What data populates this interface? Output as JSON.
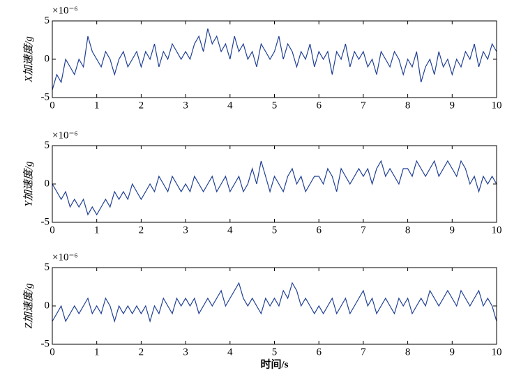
{
  "chart_data": [
    {
      "type": "line",
      "ylabel": "X加速度/g",
      "multiplier": "×10⁻⁶",
      "x": [
        0,
        0.1,
        0.2,
        0.3,
        0.4,
        0.5,
        0.6,
        0.7,
        0.8,
        0.9,
        1,
        1.1,
        1.2,
        1.3,
        1.4,
        1.5,
        1.6,
        1.7,
        1.8,
        1.9,
        2,
        2.1,
        2.2,
        2.3,
        2.4,
        2.5,
        2.6,
        2.7,
        2.8,
        2.9,
        3,
        3.1,
        3.2,
        3.3,
        3.4,
        3.5,
        3.6,
        3.7,
        3.8,
        3.9,
        4,
        4.1,
        4.2,
        4.3,
        4.4,
        4.5,
        4.6,
        4.7,
        4.8,
        4.9,
        5,
        5.1,
        5.2,
        5.3,
        5.4,
        5.5,
        5.6,
        5.7,
        5.8,
        5.9,
        6,
        6.1,
        6.2,
        6.3,
        6.4,
        6.5,
        6.6,
        6.7,
        6.8,
        6.9,
        7,
        7.1,
        7.2,
        7.3,
        7.4,
        7.5,
        7.6,
        7.7,
        7.8,
        7.9,
        8,
        8.1,
        8.2,
        8.3,
        8.4,
        8.5,
        8.6,
        8.7,
        8.8,
        8.9,
        9,
        9.1,
        9.2,
        9.3,
        9.4,
        9.5,
        9.6,
        9.7,
        9.8,
        9.9,
        10
      ],
      "series": [
        {
          "color": "#1f3f94",
          "values": [
            -4,
            -2,
            -3,
            0,
            -1,
            -2,
            0,
            -1,
            3,
            1,
            0,
            -1,
            1,
            0,
            -2,
            0,
            1,
            -1,
            0,
            1,
            -1,
            1,
            0,
            2,
            -1,
            1,
            0,
            2,
            1,
            0,
            1,
            0,
            2,
            3,
            1,
            4,
            2,
            3,
            1,
            2,
            0,
            3,
            1,
            2,
            0,
            1,
            -1,
            2,
            1,
            0,
            1,
            3,
            0,
            2,
            1,
            -1,
            1,
            0,
            2,
            -1,
            1,
            0,
            1,
            -2,
            1,
            0,
            2,
            -1,
            1,
            0,
            1,
            -1,
            0,
            -2,
            1,
            0,
            -1,
            1,
            0,
            -2,
            0,
            -1,
            1,
            -3,
            -1,
            0,
            -2,
            1,
            -1,
            0,
            -2,
            0,
            -1,
            1,
            0,
            2,
            -1,
            1,
            0,
            2,
            1
          ]
        }
      ],
      "xlim": [
        0,
        10
      ],
      "ylim": [
        -5,
        5
      ],
      "xticks": [
        0,
        1,
        2,
        3,
        4,
        5,
        6,
        7,
        8,
        9,
        10
      ],
      "yticks": [
        -5,
        0,
        5
      ]
    },
    {
      "type": "line",
      "ylabel": "Y加速度/g",
      "multiplier": "×10⁻⁶",
      "x": [
        0,
        0.1,
        0.2,
        0.3,
        0.4,
        0.5,
        0.6,
        0.7,
        0.8,
        0.9,
        1,
        1.1,
        1.2,
        1.3,
        1.4,
        1.5,
        1.6,
        1.7,
        1.8,
        1.9,
        2,
        2.1,
        2.2,
        2.3,
        2.4,
        2.5,
        2.6,
        2.7,
        2.8,
        2.9,
        3,
        3.1,
        3.2,
        3.3,
        3.4,
        3.5,
        3.6,
        3.7,
        3.8,
        3.9,
        4,
        4.1,
        4.2,
        4.3,
        4.4,
        4.5,
        4.6,
        4.7,
        4.8,
        4.9,
        5,
        5.1,
        5.2,
        5.3,
        5.4,
        5.5,
        5.6,
        5.7,
        5.8,
        5.9,
        6,
        6.1,
        6.2,
        6.3,
        6.4,
        6.5,
        6.6,
        6.7,
        6.8,
        6.9,
        7,
        7.1,
        7.2,
        7.3,
        7.4,
        7.5,
        7.6,
        7.7,
        7.8,
        7.9,
        8,
        8.1,
        8.2,
        8.3,
        8.4,
        8.5,
        8.6,
        8.7,
        8.8,
        8.9,
        9,
        9.1,
        9.2,
        9.3,
        9.4,
        9.5,
        9.6,
        9.7,
        9.8,
        9.9,
        10
      ],
      "series": [
        {
          "color": "#1f3f94",
          "values": [
            0,
            -1,
            -2,
            -1,
            -3,
            -2,
            -3,
            -2,
            -4,
            -3,
            -4,
            -3,
            -2,
            -3,
            -1,
            -2,
            -1,
            -2,
            0,
            -1,
            -2,
            -1,
            0,
            -1,
            1,
            0,
            -1,
            1,
            0,
            -1,
            0,
            -1,
            1,
            0,
            -1,
            0,
            1,
            -1,
            0,
            1,
            -1,
            0,
            1,
            -1,
            0,
            2,
            0,
            3,
            1,
            -1,
            1,
            0,
            -1,
            1,
            2,
            0,
            1,
            -1,
            0,
            1,
            1,
            0,
            2,
            1,
            -1,
            2,
            1,
            0,
            1,
            2,
            1,
            2,
            0,
            2,
            3,
            1,
            2,
            1,
            0,
            2,
            2,
            1,
            3,
            2,
            1,
            2,
            3,
            1,
            2,
            3,
            2,
            1,
            3,
            2,
            0,
            1,
            -1,
            1,
            0,
            1,
            0
          ]
        }
      ],
      "xlim": [
        0,
        10
      ],
      "ylim": [
        -5,
        5
      ],
      "xticks": [
        0,
        1,
        2,
        3,
        4,
        5,
        6,
        7,
        8,
        9,
        10
      ],
      "yticks": [
        -5,
        0,
        5
      ]
    },
    {
      "type": "line",
      "ylabel": "Z加速度/g",
      "multiplier": "×10⁻⁶",
      "xlabel": "时间/s",
      "x": [
        0,
        0.1,
        0.2,
        0.3,
        0.4,
        0.5,
        0.6,
        0.7,
        0.8,
        0.9,
        1,
        1.1,
        1.2,
        1.3,
        1.4,
        1.5,
        1.6,
        1.7,
        1.8,
        1.9,
        2,
        2.1,
        2.2,
        2.3,
        2.4,
        2.5,
        2.6,
        2.7,
        2.8,
        2.9,
        3,
        3.1,
        3.2,
        3.3,
        3.4,
        3.5,
        3.6,
        3.7,
        3.8,
        3.9,
        4,
        4.1,
        4.2,
        4.3,
        4.4,
        4.5,
        4.6,
        4.7,
        4.8,
        4.9,
        5,
        5.1,
        5.2,
        5.3,
        5.4,
        5.5,
        5.6,
        5.7,
        5.8,
        5.9,
        6,
        6.1,
        6.2,
        6.3,
        6.4,
        6.5,
        6.6,
        6.7,
        6.8,
        6.9,
        7,
        7.1,
        7.2,
        7.3,
        7.4,
        7.5,
        7.6,
        7.7,
        7.8,
        7.9,
        8,
        8.1,
        8.2,
        8.3,
        8.4,
        8.5,
        8.6,
        8.7,
        8.8,
        8.9,
        9,
        9.1,
        9.2,
        9.3,
        9.4,
        9.5,
        9.6,
        9.7,
        9.8,
        9.9,
        10
      ],
      "series": [
        {
          "color": "#1f3f94",
          "values": [
            -2,
            -1,
            0,
            -2,
            -1,
            0,
            -1,
            0,
            1,
            -1,
            0,
            -1,
            1,
            0,
            -2,
            0,
            -1,
            0,
            -1,
            0,
            -1,
            0,
            -2,
            0,
            -1,
            1,
            0,
            -1,
            1,
            0,
            1,
            0,
            1,
            -1,
            0,
            1,
            0,
            1,
            2,
            0,
            1,
            2,
            3,
            1,
            0,
            1,
            0,
            -1,
            1,
            0,
            1,
            0,
            2,
            1,
            3,
            2,
            0,
            1,
            0,
            -1,
            0,
            -1,
            0,
            1,
            -1,
            0,
            1,
            -1,
            0,
            1,
            2,
            0,
            1,
            -1,
            0,
            1,
            0,
            -1,
            1,
            0,
            1,
            -1,
            0,
            1,
            0,
            2,
            1,
            0,
            1,
            2,
            1,
            0,
            2,
            1,
            0,
            1,
            2,
            0,
            1,
            0,
            -2
          ]
        }
      ],
      "xlim": [
        0,
        10
      ],
      "ylim": [
        -5,
        5
      ],
      "xticks": [
        0,
        1,
        2,
        3,
        4,
        5,
        6,
        7,
        8,
        9,
        10
      ],
      "yticks": [
        -5,
        0,
        5
      ]
    }
  ]
}
